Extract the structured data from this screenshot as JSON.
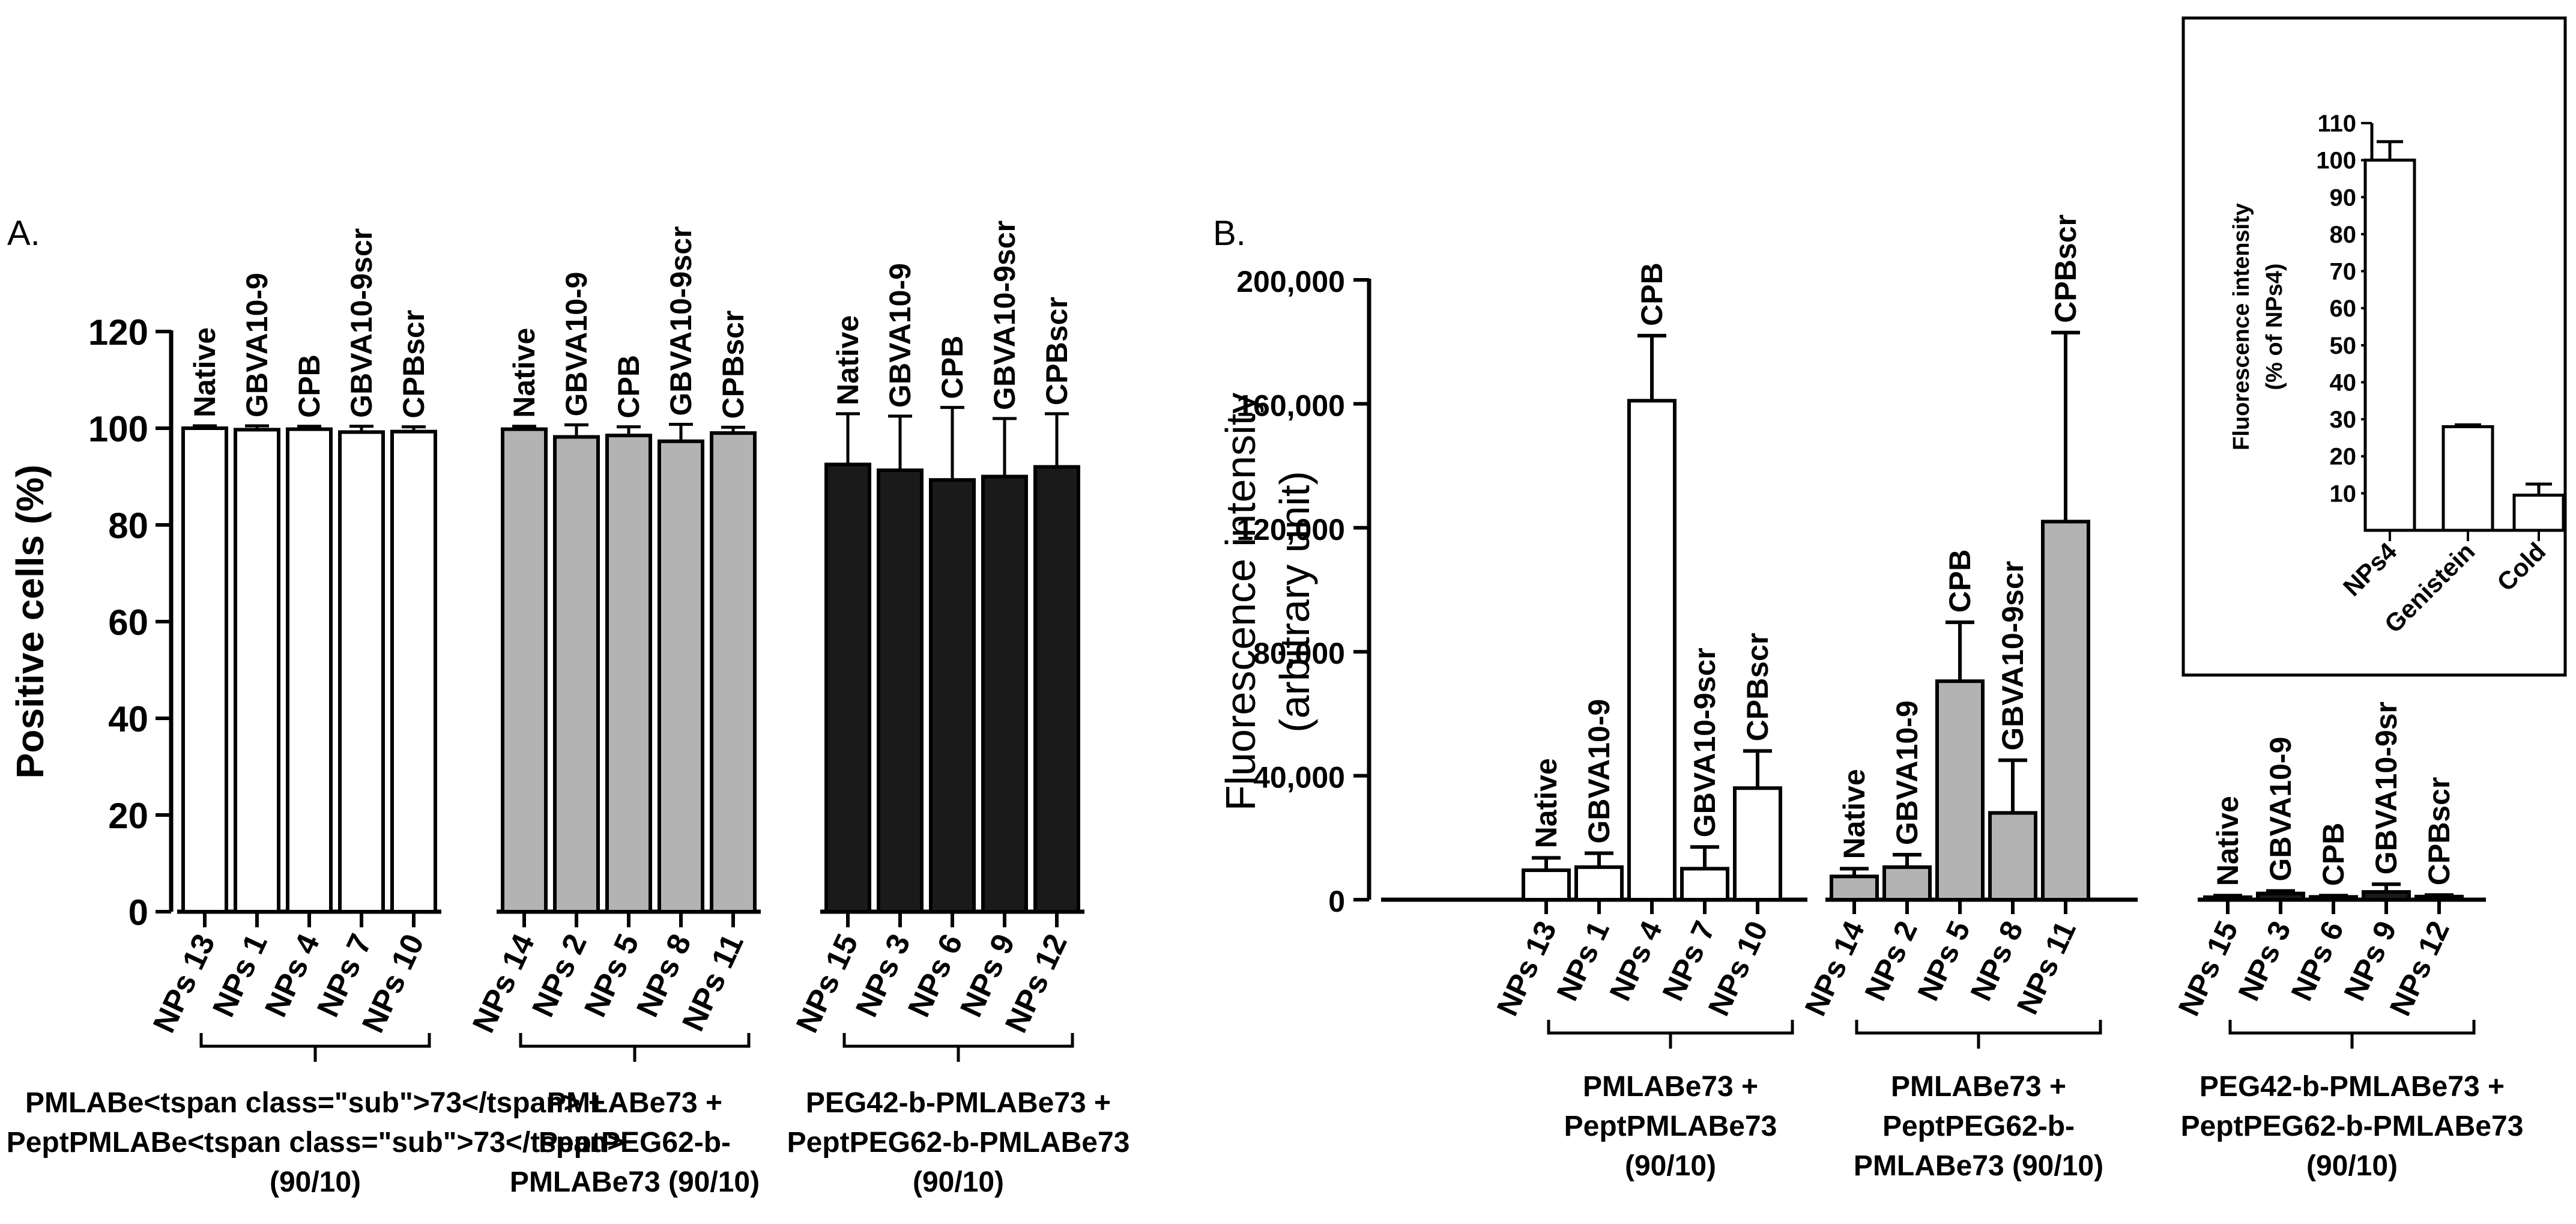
{
  "chart_data": [
    {
      "panel_id": "A",
      "panel_label": "A.",
      "type": "bar",
      "ylabel": "Positive cells (%)",
      "ylim": [
        0,
        120
      ],
      "yticks": [
        0,
        20,
        40,
        60,
        80,
        100,
        120
      ],
      "grid": false,
      "groups": [
        {
          "color": "#ffffff",
          "caption": [
            "PMLABe<tspan class=\"sub\">73</tspan> +",
            "PeptPMLABe<tspan class=\"sub\">73</tspan>",
            "(90/10)"
          ],
          "bars": [
            {
              "x": "NPs 13",
              "peptide": "Native",
              "value": 100,
              "err": 0.5
            },
            {
              "x": "NPs 1",
              "peptide": "GBVA10-9",
              "value": 99.7,
              "err": 0.8
            },
            {
              "x": "NPs 4",
              "peptide": "CPB",
              "value": 99.8,
              "err": 0.6
            },
            {
              "x": "NPs 7",
              "peptide": "GBVA10-9scr",
              "value": 99.2,
              "err": 1.2
            },
            {
              "x": "NPs 10",
              "peptide": "CPBscr",
              "value": 99.3,
              "err": 1.0
            }
          ]
        },
        {
          "color": "#b3b3b3",
          "caption": [
            "PMLABe73 +",
            "PeptPEG62-b-",
            "PMLABe73 (90/10)"
          ],
          "bars": [
            {
              "x": "NPs 14",
              "peptide": "Native",
              "value": 99.8,
              "err": 0.6
            },
            {
              "x": "NPs 2",
              "peptide": "GBVA10-9",
              "value": 98.2,
              "err": 2.5
            },
            {
              "x": "NPs 5",
              "peptide": "CPB",
              "value": 98.5,
              "err": 1.8
            },
            {
              "x": "NPs 8",
              "peptide": "GBVA10-9scr",
              "value": 97.3,
              "err": 3.5
            },
            {
              "x": "NPs 11",
              "peptide": "CPBscr",
              "value": 99.0,
              "err": 1.2
            }
          ]
        },
        {
          "color": "#1a1a1a",
          "caption": [
            "PEG42-b-PMLABe73 +",
            "PeptPEG62-b-PMLABe73",
            "(90/10)"
          ],
          "bars": [
            {
              "x": "NPs 15",
              "peptide": "Native",
              "value": 92.5,
              "err": 10.5
            },
            {
              "x": "NPs 3",
              "peptide": "GBVA10-9",
              "value": 91.3,
              "err": 11.2
            },
            {
              "x": "NPs 6",
              "peptide": "CPB",
              "value": 89.3,
              "err": 15.0
            },
            {
              "x": "NPs 9",
              "peptide": "GBVA10-9scr",
              "value": 90.0,
              "err": 12.0
            },
            {
              "x": "NPs 12",
              "peptide": "CPBscr",
              "value": 92.0,
              "err": 11.0
            }
          ]
        }
      ]
    },
    {
      "panel_id": "B",
      "panel_label": "B.",
      "type": "bar",
      "ylabel": [
        "Fluorescence intensity",
        "(arbitrary unit)"
      ],
      "ylim": [
        0,
        200000
      ],
      "yticks": [
        0,
        40000,
        80000,
        120000,
        160000,
        200000
      ],
      "ytick_labels": [
        "0",
        "40,000",
        "80,000",
        "120,000",
        "160,000",
        "200,000"
      ],
      "grid": false,
      "groups": [
        {
          "color": "#ffffff",
          "caption": [
            "PMLABe73 +",
            "PeptPMLABe73",
            "(90/10)"
          ],
          "bars": [
            {
              "x": "NPs 13",
              "peptide": "Native",
              "value": 9500,
              "err": 4000
            },
            {
              "x": "NPs 1",
              "peptide": "GBVA10-9",
              "value": 10500,
              "err": 4500
            },
            {
              "x": "NPs 4",
              "peptide": "CPB",
              "value": 161000,
              "err": 21000
            },
            {
              "x": "NPs 7",
              "peptide": "GBVA10-9scr",
              "value": 10000,
              "err": 7000
            },
            {
              "x": "NPs 10",
              "peptide": "CPBscr",
              "value": 36000,
              "err": 12000
            }
          ]
        },
        {
          "color": "#b3b3b3",
          "caption": [
            "PMLABe73 +",
            "PeptPEG62-b-",
            "PMLABe73 (90/10)"
          ],
          "bars": [
            {
              "x": "NPs 14",
              "peptide": "Native",
              "value": 7500,
              "err": 2500
            },
            {
              "x": "NPs 2",
              "peptide": "GBVA10-9",
              "value": 10500,
              "err": 4000
            },
            {
              "x": "NPs 5",
              "peptide": "CPB",
              "value": 70500,
              "err": 19000
            },
            {
              "x": "NPs 8",
              "peptide": "GBVA10-9scr",
              "value": 28000,
              "err": 17000
            },
            {
              "x": "NPs 11",
              "peptide": "CPBscr",
              "value": 122000,
              "err": 61000
            }
          ]
        },
        {
          "color": "#1a1a1a",
          "caption": [
            "PEG42-b-PMLABe73 +",
            "PeptPEG62-b-PMLABe73",
            "(90/10)"
          ],
          "bars": [
            {
              "x": "NPs 15",
              "peptide": "Native",
              "value": 800,
              "err": 500
            },
            {
              "x": "NPs 3",
              "peptide": "GBVA10-9",
              "value": 2000,
              "err": 800
            },
            {
              "x": "NPs 6",
              "peptide": "CPB",
              "value": 900,
              "err": 400
            },
            {
              "x": "NPs 9",
              "peptide": "GBVA10-9sr",
              "value": 2500,
              "err": 2500
            },
            {
              "x": "NPs 12",
              "peptide": "CPBscr",
              "value": 1000,
              "err": 500
            }
          ]
        }
      ],
      "inset": {
        "type": "bar",
        "ylabel": [
          "Fluorescence intensity",
          "(% of NPs4)"
        ],
        "ylim": [
          0,
          110
        ],
        "yticks": [
          10,
          20,
          30,
          40,
          50,
          60,
          70,
          80,
          90,
          100,
          110
        ],
        "categories": [
          "NPs4",
          "Genistein",
          "Cold"
        ],
        "values": [
          100,
          28,
          9.5
        ],
        "errors": [
          5,
          0.5,
          3
        ],
        "color": "#ffffff"
      }
    }
  ]
}
